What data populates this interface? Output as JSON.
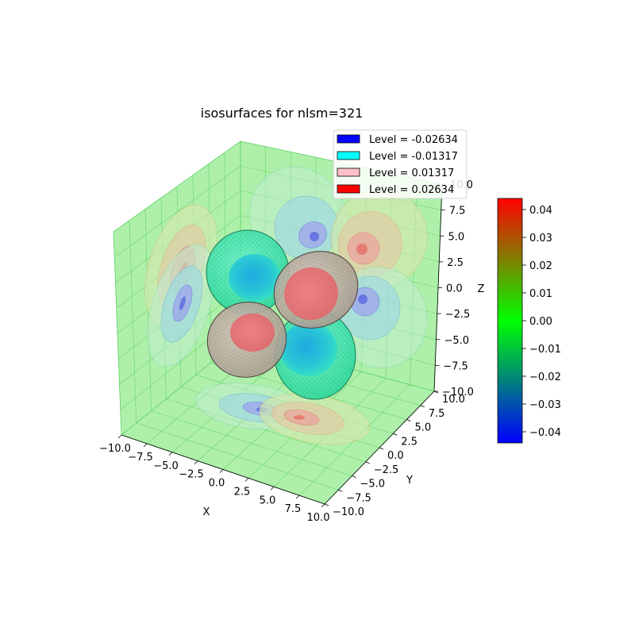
{
  "chart_data": {
    "type": "3d-isosurface",
    "title": "isosurfaces for nlsm=321",
    "xlabel": "X",
    "ylabel": "Y",
    "zlabel": "Z",
    "xlim": [
      -10,
      10
    ],
    "ylim": [
      -10,
      10
    ],
    "zlim": [
      -10,
      10
    ],
    "x_ticks": [
      "−10.0",
      "−7.5",
      "−5.0",
      "−2.5",
      "0.0",
      "2.5",
      "5.0",
      "7.5",
      "10.0"
    ],
    "y_ticks": [
      "−10.0",
      "−7.5",
      "−5.0",
      "−2.5",
      "0.0",
      "2.5",
      "5.0",
      "7.5",
      "10.0"
    ],
    "z_ticks": [
      "−10.0",
      "−7.5",
      "−5.0",
      "−2.5",
      "0.0",
      "2.5",
      "5.0",
      "7.5",
      "10.0"
    ],
    "legend_position": "top-right",
    "legend": [
      {
        "label": "Level = -0.02634",
        "color": "#0000ff"
      },
      {
        "label": "Level = -0.01317",
        "color": "#00ffff"
      },
      {
        "label": "Level = 0.01317",
        "color": "#ffc0cb"
      },
      {
        "label": "Level = 0.02634",
        "color": "#ff0000"
      }
    ],
    "colorbar": {
      "ticks": [
        "0.04",
        "0.03",
        "0.02",
        "0.01",
        "0.00",
        "−0.01",
        "−0.02",
        "−0.03",
        "−0.04"
      ],
      "tick_values": [
        0.04,
        0.03,
        0.02,
        0.01,
        0.0,
        -0.01,
        -0.02,
        -0.03,
        -0.04
      ],
      "range": [
        -0.044,
        0.044
      ],
      "colors": [
        "#0000ff",
        "#00ff00",
        "#ff0000"
      ]
    },
    "pane_color": "#aef0aa",
    "grid": true
  }
}
